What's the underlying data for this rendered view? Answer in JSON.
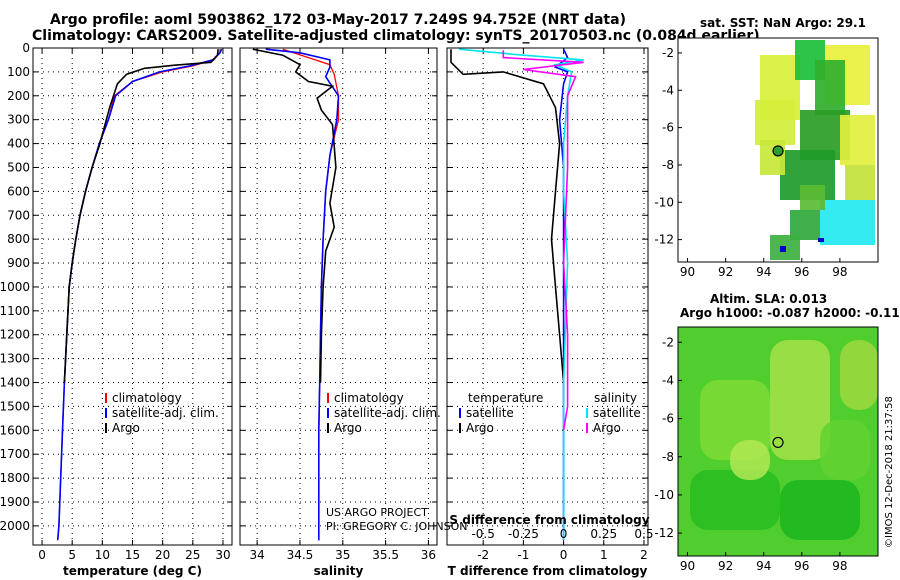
{
  "header": {
    "line1": "Argo profile: aoml 5903862_172 03-May-2017 7.249S 94.752E (NRT data)",
    "line2": "Climatology: CARS2009. Satellite-adjusted climatology: synTS_20170503.nc (0.084d earlier)"
  },
  "colors": {
    "climatology": "#ff0000",
    "satellite": "#0000ff",
    "argo": "#000000",
    "sal_satellite": "#00e5ee",
    "sal_argo": "#ff00ff"
  },
  "legends": {
    "temperature": [
      "climatology",
      "satellite-adj. clim.",
      "Argo"
    ],
    "salinity": [
      "climatology",
      "satellite-adj. clim.",
      "Argo"
    ],
    "diff_temp_header": "temperature",
    "diff_temp_items": [
      "satellite",
      "Argo"
    ],
    "diff_sal_header": "salinity",
    "diff_sal_items": [
      "satellite",
      "Argo"
    ]
  },
  "credits": {
    "line1": "US ARGO PROJECT",
    "line2": "PI: GREGORY C. JOHNSON"
  },
  "timestamp": "©IMOS 12-Dec-2018 21:37:58",
  "maps": {
    "sst_title": "sat. SST: NaN Argo: 29.1",
    "sla_title_line1": "Altim. SLA: 0.013",
    "sla_title_line2": "Argo h1000: -0.087 h2000: -0.11",
    "x_ticks": [
      "90",
      "92",
      "94",
      "96",
      "98"
    ],
    "y_ticks": [
      "-2",
      "-4",
      "-6",
      "-8",
      "-10",
      "-12"
    ],
    "float_lon": 94.752,
    "float_lat": -7.249,
    "lon_range": [
      89.5,
      100
    ],
    "lat_range": [
      -13.2,
      -1.2
    ]
  },
  "chart_data": [
    {
      "type": "line",
      "name": "temperature",
      "xlabel": "temperature (deg C)",
      "ylabel": "pressure",
      "xlim": [
        -1.5,
        31.5
      ],
      "ylim": [
        2080,
        0
      ],
      "xticks": [
        "0",
        "5",
        "10",
        "15",
        "20",
        "25",
        "30"
      ],
      "yticks": [
        "0",
        "100",
        "200",
        "300",
        "400",
        "500",
        "600",
        "700",
        "800",
        "900",
        "1000",
        "1100",
        "1200",
        "1300",
        "1400",
        "1500",
        "1600",
        "1700",
        "1800",
        "1900",
        "2000"
      ],
      "grid": true,
      "legend": "lower-center",
      "series": [
        {
          "name": "climatology",
          "x": [
            29.5,
            29.5,
            28.5,
            25,
            20,
            15,
            12,
            11,
            9.5,
            8.3,
            7.2,
            6.3,
            5.6,
            5,
            4.5,
            4.1,
            3.7,
            3.4,
            3.1,
            2.8,
            2.6
          ],
          "y": [
            5,
            20,
            50,
            75,
            100,
            140,
            200,
            300,
            400,
            500,
            600,
            700,
            800,
            900,
            1000,
            1200,
            1400,
            1600,
            1800,
            2000,
            2060
          ]
        },
        {
          "name": "satellite-adj. clim.",
          "x": [
            29.8,
            29.5,
            28.3,
            24.5,
            19.5,
            15,
            12.2,
            11,
            9.5,
            8.3,
            7.2,
            6.3,
            5.6,
            5,
            4.5,
            4.1,
            3.7,
            3.4,
            3.1,
            2.8,
            2.6
          ],
          "y": [
            5,
            20,
            50,
            75,
            100,
            140,
            200,
            300,
            400,
            500,
            600,
            700,
            800,
            900,
            1000,
            1200,
            1400,
            1600,
            1800,
            2000,
            2060
          ]
        },
        {
          "name": "Argo",
          "x": [
            29.2,
            29.1,
            28,
            22,
            17,
            14,
            12.5,
            11.2,
            9.6,
            8.3,
            7.2,
            6.3,
            5.6,
            5,
            4.5,
            4.1,
            3.7
          ],
          "y": [
            5,
            30,
            60,
            72,
            85,
            110,
            150,
            250,
            400,
            500,
            600,
            700,
            800,
            900,
            1000,
            1200,
            1400
          ]
        }
      ]
    },
    {
      "type": "line",
      "name": "salinity",
      "xlabel": "salinity",
      "xlim": [
        33.8,
        36.1
      ],
      "ylim": [
        2080,
        0
      ],
      "xticks": [
        "34",
        "34.5",
        "35",
        "35.5",
        "36"
      ],
      "grid": true,
      "legend": "lower-center",
      "series": [
        {
          "name": "climatology",
          "x": [
            34.3,
            34.6,
            34.85,
            34.9,
            34.95,
            34.95,
            34.85,
            34.8,
            34.77,
            34.75,
            34.74,
            34.73,
            34.72,
            34.72,
            34.72
          ],
          "y": [
            5,
            40,
            70,
            110,
            200,
            300,
            450,
            600,
            800,
            1000,
            1200,
            1400,
            1600,
            1800,
            2060
          ]
        },
        {
          "name": "satellite-adj. clim.",
          "x": [
            34.1,
            34.5,
            34.85,
            34.85,
            34.8,
            34.95,
            34.93,
            34.85,
            34.8,
            34.77,
            34.75,
            34.74,
            34.73,
            34.72,
            34.72,
            34.72
          ],
          "y": [
            5,
            20,
            50,
            80,
            120,
            200,
            300,
            450,
            600,
            800,
            1000,
            1200,
            1400,
            1600,
            1800,
            2060
          ]
        },
        {
          "name": "Argo",
          "x": [
            33.95,
            34.3,
            34.5,
            34.45,
            34.6,
            34.88,
            34.7,
            34.75,
            34.88,
            34.92,
            34.85,
            34.9,
            34.8,
            34.77,
            34.75,
            34.74
          ],
          "y": [
            5,
            30,
            70,
            100,
            140,
            160,
            210,
            260,
            320,
            500,
            650,
            750,
            850,
            1000,
            1200,
            1400
          ]
        }
      ]
    },
    {
      "type": "line",
      "name": "difference",
      "xlabel": "T difference from climatology",
      "xlabel_top": "S difference from climatology",
      "xlim": [
        -2.9,
        2.1
      ],
      "ylim": [
        2080,
        0
      ],
      "xticks": [
        "-2",
        "-1",
        "0",
        "1",
        "2"
      ],
      "xticks_sal": [
        "-0.5",
        "-0.25",
        "0",
        "0.25",
        "0.5"
      ],
      "grid": true,
      "legend": "lower",
      "series": [
        {
          "name": "temperature satellite",
          "x": [
            0,
            0.1,
            -0.2,
            0.1,
            0,
            -0.1,
            0,
            0,
            0,
            0,
            0
          ],
          "y": [
            5,
            40,
            80,
            100,
            150,
            300,
            500,
            800,
            1200,
            1600,
            2060
          ]
        },
        {
          "name": "temperature Argo",
          "x": [
            -2.8,
            -2.8,
            -2.5,
            -1.5,
            -0.5,
            -0.2,
            -0.1,
            -0.2,
            -0.3,
            -0.2,
            -0.1,
            0
          ],
          "y": [
            5,
            60,
            110,
            100,
            150,
            250,
            400,
            600,
            800,
            1000,
            1200,
            1400
          ]
        },
        {
          "name": "salinity satellite",
          "x": [
            -2.6,
            -1.0,
            0.5,
            -0.2,
            0.2,
            0.1,
            0,
            0,
            0.1,
            0,
            0
          ],
          "y": [
            5,
            30,
            50,
            70,
            100,
            200,
            400,
            600,
            900,
            1400,
            2060
          ]
        },
        {
          "name": "salinity Argo",
          "x": [
            -1.5,
            -1.5,
            0.5,
            -1.0,
            0.3,
            0.1,
            0.1,
            0,
            0.1,
            0.1,
            0
          ],
          "y": [
            10,
            40,
            60,
            90,
            120,
            200,
            500,
            900,
            1200,
            1500,
            1600
          ]
        }
      ]
    }
  ]
}
